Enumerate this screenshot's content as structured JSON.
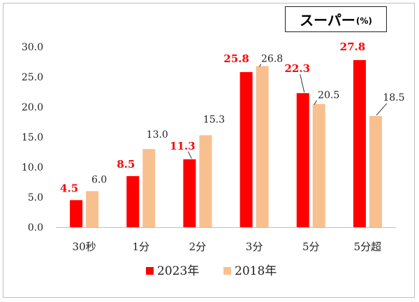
{
  "chart_data": {
    "type": "bar",
    "title": "スーパー",
    "unit": "(%)",
    "categories": [
      "30秒",
      "1分",
      "2分",
      "3分",
      "5分",
      "5分超"
    ],
    "series": [
      {
        "name": "2023年",
        "values": [
          4.5,
          8.5,
          11.3,
          25.8,
          22.3,
          27.8
        ],
        "value_labels": [
          "4.5",
          "8.5",
          "11.3",
          "25.8",
          "22.3",
          "27.8"
        ],
        "color": "#ff0000",
        "label_color": "#ff0000"
      },
      {
        "name": "2018年",
        "values": [
          6.0,
          13.0,
          15.3,
          26.8,
          20.5,
          18.5
        ],
        "value_labels": [
          "6.0",
          "13.0",
          "15.3",
          "26.8",
          "20.5",
          "18.5"
        ],
        "color": "#f8c08f",
        "label_color": "#222222"
      }
    ],
    "yticks": [
      "0.0",
      "5.0",
      "10.0",
      "15.0",
      "20.0",
      "25.0",
      "30.0"
    ],
    "ylim": [
      0,
      30
    ],
    "grid": false,
    "legend_position": "bottom"
  }
}
